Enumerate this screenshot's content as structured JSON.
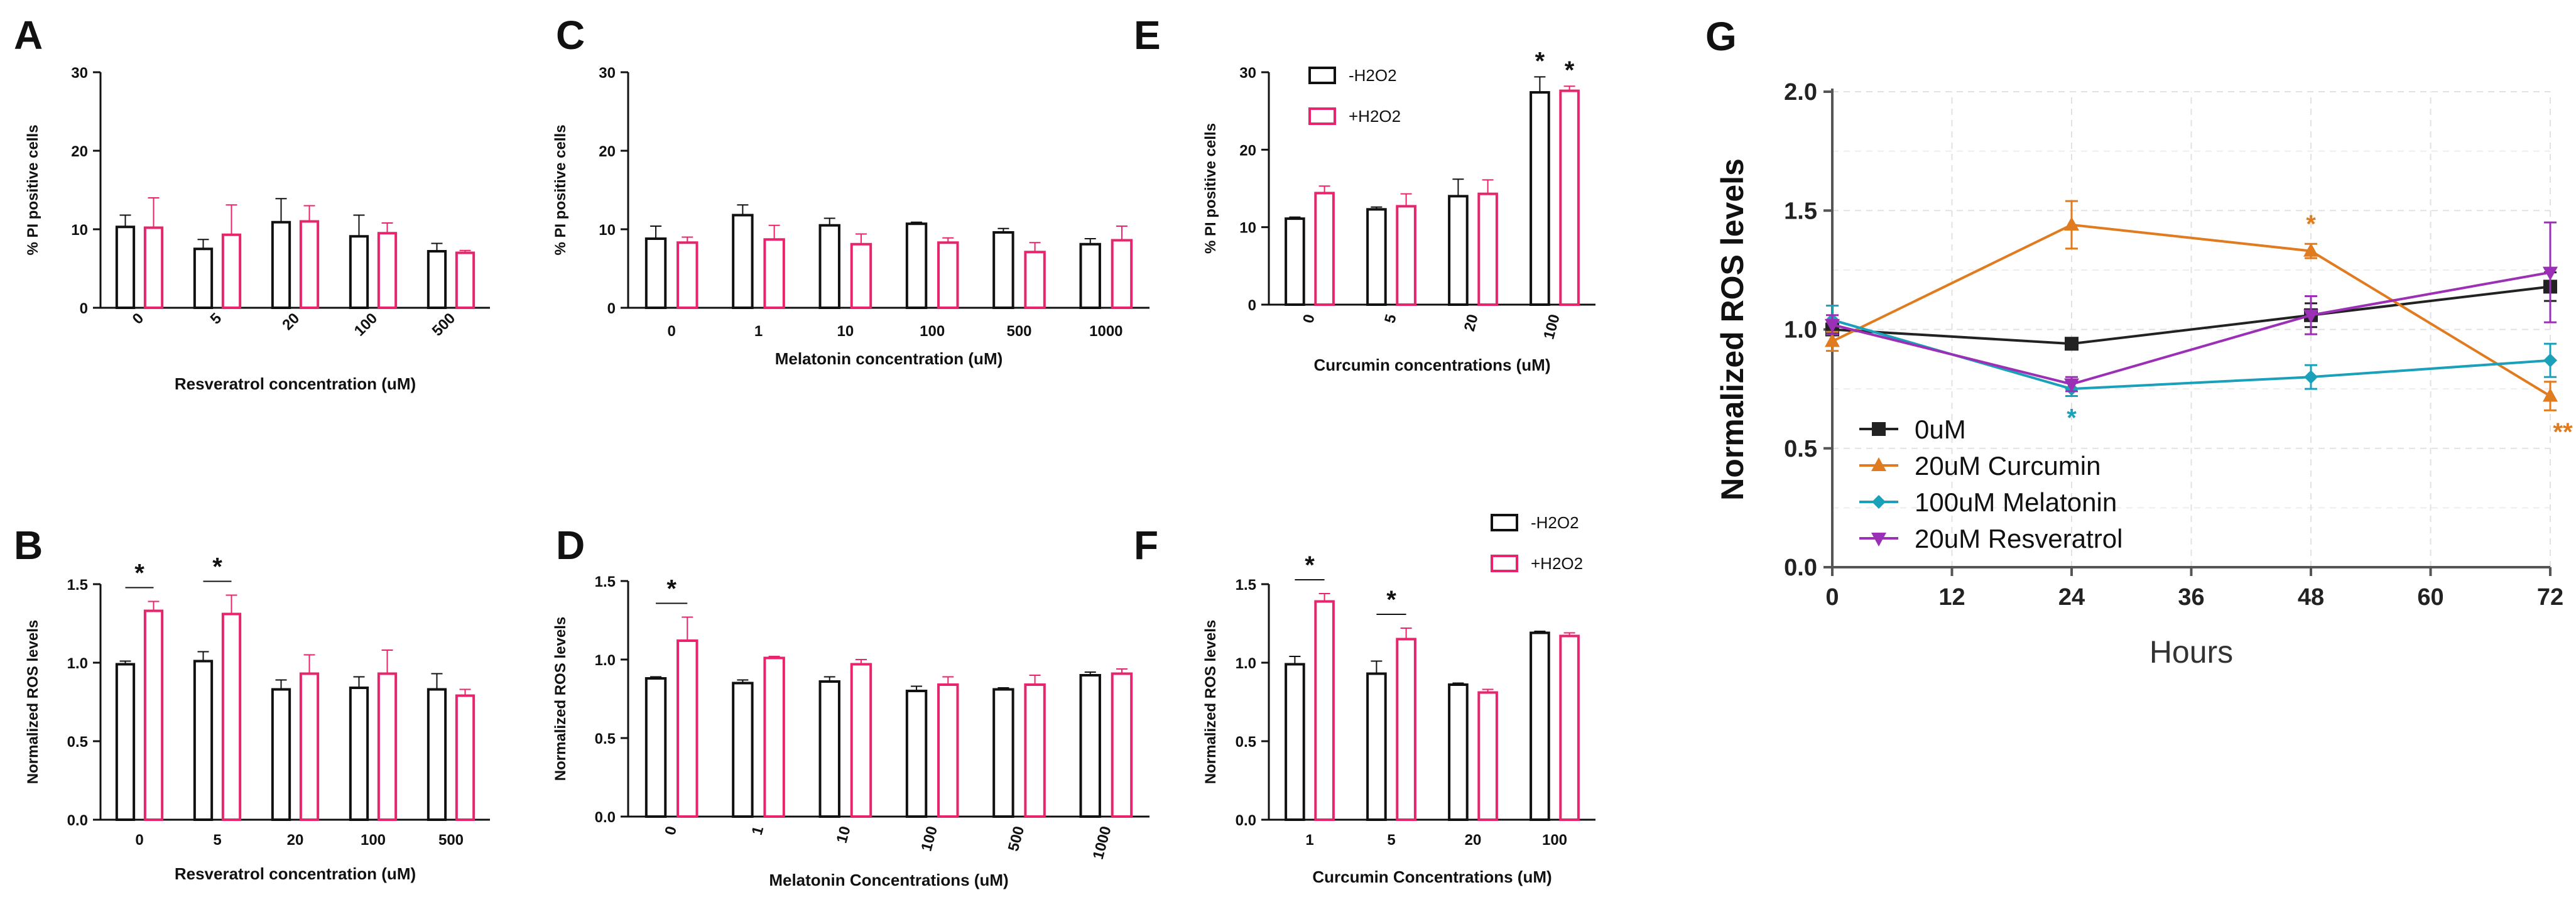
{
  "colors": {
    "minus_h2o2": "#111111",
    "plus_h2o2": "#e8246c",
    "c0uM": "#222222",
    "curcumin": "#e07b1f",
    "melatonin": "#1aa0b8",
    "resveratrol": "#9b2fb5"
  },
  "chart_data": [
    {
      "panel": "A",
      "type": "bar",
      "xlabel": "Resveratrol concentration (uM)",
      "ylabel": "% PI positive cells",
      "ylim": [
        0,
        30
      ],
      "yticks": [
        "0",
        "10",
        "20",
        "30"
      ],
      "categories": [
        "0",
        "5",
        "20",
        "100",
        "500"
      ],
      "tick_rotation": -45,
      "series": [
        {
          "name": "-H2O2",
          "values": [
            10.3,
            7.5,
            10.9,
            9.1,
            7.2
          ],
          "errors": [
            1.5,
            1.2,
            3.0,
            2.7,
            1.0
          ]
        },
        {
          "name": "+H2O2",
          "values": [
            10.2,
            9.3,
            11.0,
            9.5,
            7.0
          ],
          "errors": [
            3.8,
            3.8,
            2.0,
            1.3,
            0.3
          ]
        }
      ],
      "significance": []
    },
    {
      "panel": "B",
      "type": "bar",
      "xlabel": "Resveratrol concentration (uM)",
      "ylabel": "Normalized ROS levels",
      "ylim": [
        0,
        1.5
      ],
      "yticks": [
        "0.0",
        "0.5",
        "1.0",
        "1.5"
      ],
      "categories": [
        "0",
        "5",
        "20",
        "100",
        "500"
      ],
      "tick_rotation": 0,
      "series": [
        {
          "name": "-H2O2",
          "values": [
            0.99,
            1.01,
            0.83,
            0.84,
            0.83
          ],
          "errors": [
            0.02,
            0.06,
            0.06,
            0.07,
            0.1
          ]
        },
        {
          "name": "+H2O2",
          "values": [
            1.33,
            1.31,
            0.93,
            0.93,
            0.79
          ],
          "errors": [
            0.06,
            0.12,
            0.12,
            0.15,
            0.04
          ]
        }
      ],
      "significance": [
        {
          "category": 0,
          "label": "*"
        },
        {
          "category": 1,
          "label": "*"
        }
      ]
    },
    {
      "panel": "C",
      "type": "bar",
      "xlabel": "Melatonin concentration (uM)",
      "ylabel": "% PI positive cells",
      "ylim": [
        0,
        30
      ],
      "yticks": [
        "0",
        "10",
        "20",
        "30"
      ],
      "categories": [
        "0",
        "1",
        "10",
        "100",
        "500",
        "1000"
      ],
      "tick_rotation": 0,
      "series": [
        {
          "name": "-H2O2",
          "values": [
            8.8,
            11.8,
            10.5,
            10.7,
            9.6,
            8.1
          ],
          "errors": [
            1.6,
            1.3,
            0.9,
            0.2,
            0.5,
            0.7
          ]
        },
        {
          "name": "+H2O2",
          "values": [
            8.3,
            8.7,
            8.1,
            8.3,
            7.1,
            8.6
          ],
          "errors": [
            0.7,
            1.8,
            1.3,
            0.6,
            1.2,
            1.8
          ]
        }
      ],
      "significance": []
    },
    {
      "panel": "D",
      "type": "bar",
      "xlabel": "Melatonin Concentrations (uM)",
      "ylabel": "Normalized ROS levels",
      "ylim": [
        0,
        1.5
      ],
      "yticks": [
        "0.0",
        "0.5",
        "1.0",
        "1.5"
      ],
      "categories": [
        "0",
        "1",
        "10",
        "100",
        "500",
        "1000"
      ],
      "tick_rotation": -75,
      "series": [
        {
          "name": "-H2O2",
          "values": [
            0.88,
            0.85,
            0.86,
            0.8,
            0.81,
            0.9
          ],
          "errors": [
            0.01,
            0.02,
            0.03,
            0.03,
            0.01,
            0.02
          ]
        },
        {
          "name": "+H2O2",
          "values": [
            1.12,
            1.01,
            0.97,
            0.84,
            0.84,
            0.91
          ],
          "errors": [
            0.15,
            0.01,
            0.03,
            0.05,
            0.06,
            0.03
          ]
        }
      ],
      "significance": [
        {
          "category": 0,
          "label": "*"
        }
      ]
    },
    {
      "panel": "E",
      "type": "bar",
      "xlabel": "Curcumin concentrations (uM)",
      "ylabel": "% PI positive cells",
      "ylim": [
        0,
        30
      ],
      "yticks": [
        "0",
        "10",
        "20",
        "30"
      ],
      "categories": [
        "0",
        "5",
        "20",
        "100"
      ],
      "tick_rotation": -75,
      "legend": [
        "-H2O2",
        "+H2O2"
      ],
      "series": [
        {
          "name": "-H2O2",
          "values": [
            11.1,
            12.3,
            14.0,
            27.4
          ],
          "errors": [
            0.2,
            0.3,
            2.2,
            2.0
          ]
        },
        {
          "name": "+H2O2",
          "values": [
            14.4,
            12.7,
            14.3,
            27.6
          ],
          "errors": [
            0.9,
            1.6,
            1.8,
            0.6
          ]
        }
      ],
      "significance": [
        {
          "category": 3,
          "series": 0,
          "label": "*"
        },
        {
          "category": 3,
          "series": 1,
          "label": "*"
        }
      ]
    },
    {
      "panel": "F",
      "type": "bar",
      "xlabel": "Curcumin Concentrations (uM)",
      "ylabel": "Normalized ROS levels",
      "ylim": [
        0,
        1.5
      ],
      "yticks": [
        "0.0",
        "0.5",
        "1.0",
        "1.5"
      ],
      "categories": [
        "1",
        "5",
        "20",
        "100"
      ],
      "tick_rotation": 0,
      "legend": [
        "-H2O2",
        "+H2O2"
      ],
      "series": [
        {
          "name": "-H2O2",
          "values": [
            0.99,
            0.93,
            0.86,
            1.19
          ],
          "errors": [
            0.05,
            0.08,
            0.01,
            0.01
          ]
        },
        {
          "name": "+H2O2",
          "values": [
            1.39,
            1.15,
            0.81,
            1.17
          ],
          "errors": [
            0.05,
            0.07,
            0.02,
            0.02
          ]
        }
      ],
      "significance": [
        {
          "category": 0,
          "label": "*"
        },
        {
          "category": 1,
          "label": "*"
        }
      ]
    },
    {
      "panel": "G",
      "type": "line",
      "xlabel": "Hours",
      "ylabel": "Normalized ROS levels",
      "xlim": [
        0,
        72
      ],
      "ylim": [
        0,
        2.0
      ],
      "xticks": [
        "0",
        "12",
        "24",
        "36",
        "48",
        "60",
        "72"
      ],
      "yticks": [
        "0.0",
        "0.5",
        "1.0",
        "1.5",
        "2.0"
      ],
      "grid": true,
      "x": [
        0,
        24,
        48,
        72
      ],
      "series": [
        {
          "name": "0uM",
          "marker": "square",
          "values": [
            1.0,
            0.94,
            1.06,
            1.18
          ],
          "errors": [
            0.02,
            0.02,
            0.05,
            0.06
          ]
        },
        {
          "name": "20uM Curcumin",
          "marker": "triangle-up",
          "values": [
            0.95,
            1.44,
            1.33,
            0.72
          ],
          "errors": [
            0.04,
            0.1,
            0.03,
            0.06
          ]
        },
        {
          "name": "100uM Melatonin",
          "marker": "diamond",
          "values": [
            1.04,
            0.75,
            0.8,
            0.87
          ],
          "errors": [
            0.06,
            0.03,
            0.05,
            0.07
          ]
        },
        {
          "name": "20uM Resveratrol",
          "marker": "triangle-down",
          "values": [
            1.02,
            0.77,
            1.06,
            1.24
          ],
          "errors": [
            0.04,
            0.03,
            0.08,
            0.21
          ]
        }
      ],
      "significance": [
        {
          "x": 24,
          "series": 2,
          "label": "*",
          "position": "below"
        },
        {
          "x": 48,
          "series": 1,
          "label": "*",
          "position": "above"
        },
        {
          "x": 72,
          "series": 1,
          "label": "**",
          "position": "below"
        }
      ]
    }
  ]
}
